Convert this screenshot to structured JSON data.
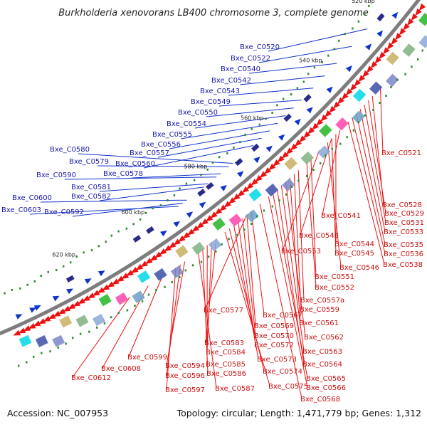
{
  "title": "Burkholderia xenovorans LB400 chromosome 3, complete genome",
  "footer": {
    "accession": "Accession: NC_007953",
    "summary": "Topology: circular; Length: 1,471,779 bp; Genes: 1,312"
  },
  "scale_labels": [
    "520 kbp",
    "540 kbp",
    "560 kbp",
    "580 kbp",
    "600 kbp",
    "620 kbp"
  ],
  "colors": {
    "backbone": "#8c8c8c",
    "forward_strand": "#ee1111",
    "reverse_strand": "#1133cc",
    "forward_label": "#cc1111",
    "reverse_label": "#1a1aaa",
    "gc_marker": "#2c8c2c"
  },
  "blue_labels": [
    "Bxe_C0520",
    "Bxe_C0522",
    "Bxe_C0540",
    "Bxe_C0542",
    "Bxe_C0543",
    "Bxe_C0549",
    "Bxe_C0550",
    "Bxe_C0554",
    "Bxe_C0555",
    "Bxe_C0556",
    "Bxe_C0557",
    "Bxe_C0560",
    "Bxe_C0580",
    "Bxe_C0579",
    "Bxe_C0578",
    "Bxe_C0590",
    "Bxe_C0581",
    "Bxe_C0582",
    "Bxe_C0600",
    "Bxe_C0603",
    "Bxe_C0592"
  ],
  "red_labels": [
    "Bxe_C0521",
    "Bxe_C0528",
    "Bxe_C0529",
    "Bxe_C0531",
    "Bxe_C0533",
    "Bxe_C0535",
    "Bxe_C0536",
    "Bxe_C0538",
    "Bxe_C0541",
    "Bxe_C0548",
    "Bxe_C0544",
    "Bxe_C0545",
    "Bxe_C0546",
    "Bxe_C0553",
    "Bxe_C0551",
    "Bxe_C0552",
    "Bxe_C0557a",
    "Bxe_C0559",
    "Bxe_C0561",
    "Bxe_C0562",
    "Bxe_C0563",
    "Bxe_C0564",
    "Bxe_C0565",
    "Bxe_C0566",
    "Bxe_C0568",
    "Bxe_C0577",
    "Bxe_C0567",
    "Bxe_C0569",
    "Bxe_C0570",
    "Bxe_C0572",
    "Bxe_C0573",
    "Bxe_C0574",
    "Bxe_C0575",
    "Bxe_C0583",
    "Bxe_C0584",
    "Bxe_C0585",
    "Bxe_C0586",
    "Bxe_C0587",
    "Bxe_C0594",
    "Bxe_C0596",
    "Bxe_C0597",
    "Bxe_C0599",
    "Bxe_C0608",
    "Bxe_C0612"
  ]
}
